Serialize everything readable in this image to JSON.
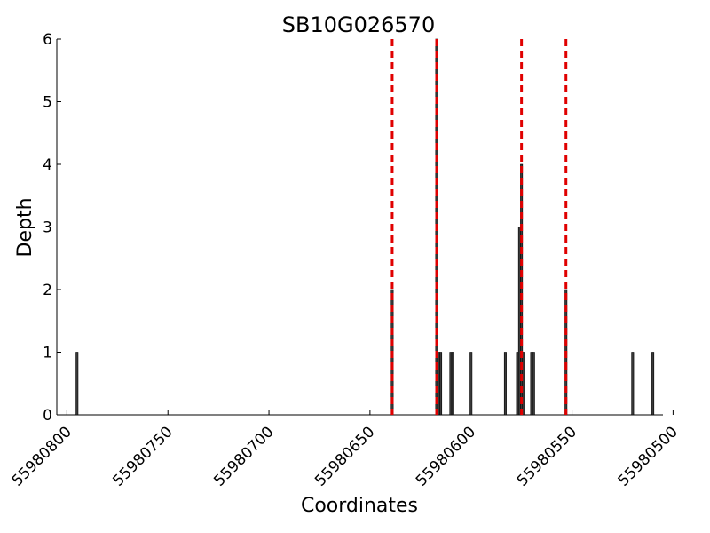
{
  "chart_data": {
    "type": "bar",
    "title": "SB10G026570",
    "xlabel": "Coordinates",
    "ylabel": "Depth",
    "x_reversed": true,
    "xlim": [
      55980805,
      55980505
    ],
    "ylim": [
      0,
      6
    ],
    "x_ticks": [
      55980800,
      55980750,
      55980700,
      55980650,
      55980600,
      55980550,
      55980500
    ],
    "y_ticks": [
      0,
      1,
      2,
      3,
      4,
      5,
      6
    ],
    "grid": false,
    "colors": {
      "bar_fill": "#3a3a3a",
      "bar_edge": "#000000",
      "marker_line": "#e00000"
    },
    "series": [
      {
        "values": [
          {
            "x": 55980795,
            "y": 1
          },
          {
            "x": 55980639,
            "y": 2
          },
          {
            "x": 55980617,
            "y": 6
          },
          {
            "x": 55980616,
            "y": 1
          },
          {
            "x": 55980615,
            "y": 1
          },
          {
            "x": 55980610,
            "y": 1
          },
          {
            "x": 55980609,
            "y": 1
          },
          {
            "x": 55980600,
            "y": 1
          },
          {
            "x": 55980583,
            "y": 1
          },
          {
            "x": 55980577,
            "y": 1
          },
          {
            "x": 55980576,
            "y": 3
          },
          {
            "x": 55980575,
            "y": 4
          },
          {
            "x": 55980574,
            "y": 1
          },
          {
            "x": 55980570,
            "y": 1
          },
          {
            "x": 55980569,
            "y": 1
          },
          {
            "x": 55980553,
            "y": 2
          },
          {
            "x": 55980520,
            "y": 1
          },
          {
            "x": 55980510,
            "y": 1
          }
        ]
      }
    ],
    "marker_lines_x": [
      55980639,
      55980617,
      55980575,
      55980553
    ]
  }
}
